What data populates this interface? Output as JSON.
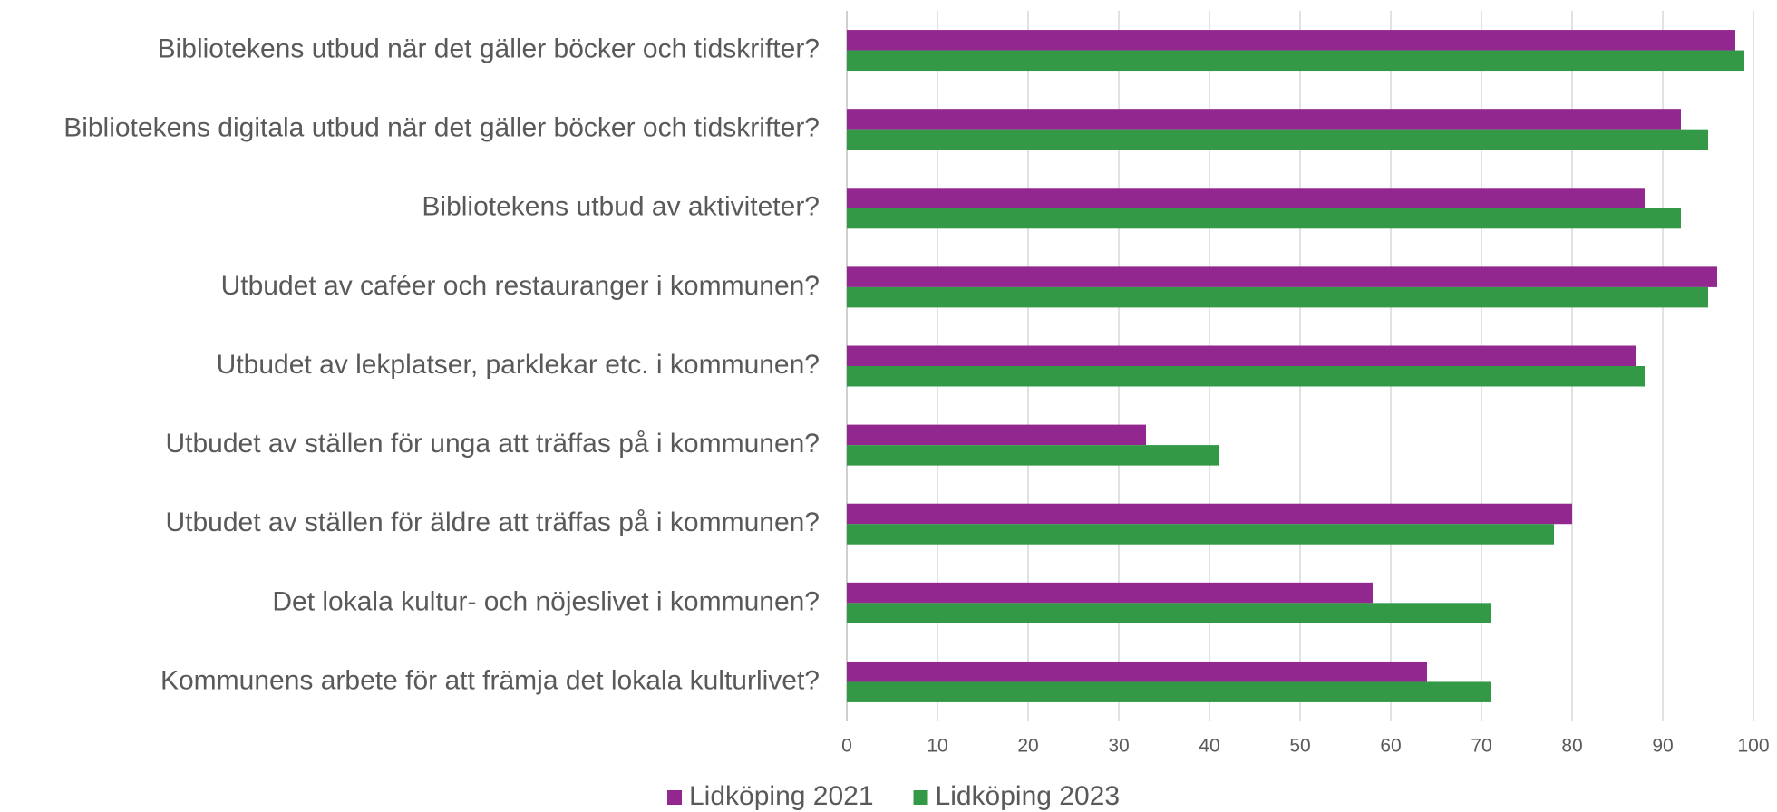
{
  "chart_data": {
    "type": "bar",
    "orientation": "horizontal",
    "categories": [
      "Bibliotekens utbud när det gäller böcker och tidskrifter?",
      "Bibliotekens digitala utbud när det gäller böcker och tidskrifter?",
      "Bibliotekens utbud av aktiviteter?",
      "Utbudet av caféer och restauranger i kommunen?",
      "Utbudet av lekplatser, parklekar etc. i kommunen?",
      "Utbudet av ställen för unga att träffas på i kommunen?",
      "Utbudet av ställen för äldre att träffas på i kommunen?",
      "Det lokala kultur- och nöjeslivet i kommunen?",
      "Kommunens arbete för att främja det lokala kulturlivet?"
    ],
    "series": [
      {
        "name": "Lidköping 2021",
        "color": "#92278f",
        "values": [
          98,
          92,
          88,
          96,
          87,
          33,
          80,
          58,
          64
        ]
      },
      {
        "name": "Lidköping 2023",
        "color": "#339946",
        "values": [
          99,
          95,
          92,
          95,
          88,
          41,
          78,
          71,
          71
        ]
      }
    ],
    "xlim": [
      0,
      100
    ],
    "xticks": [
      0,
      10,
      20,
      30,
      40,
      50,
      60,
      70,
      80,
      90,
      100
    ],
    "grid": true,
    "legend": "bottom"
  }
}
